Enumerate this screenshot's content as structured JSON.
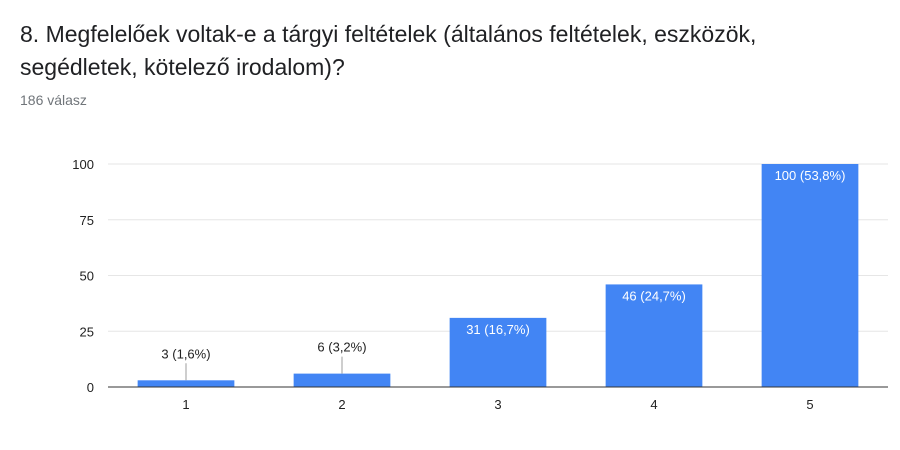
{
  "form": {
    "question": "8. Megfelelőek voltak-e a tárgyi feltételek (általános feltételek, eszközök, segédletek, kötelező irodalom)?",
    "response_count": "186 válasz"
  },
  "colors": {
    "bar": "#4285f4",
    "grid": "#e6e6e6",
    "axis": "#333333"
  },
  "chart_data": {
    "type": "bar",
    "categories": [
      "1",
      "2",
      "3",
      "4",
      "5"
    ],
    "values": [
      3,
      6,
      31,
      46,
      100
    ],
    "data_labels": [
      "3 (1,6%)",
      "6 (3,2%)",
      "31 (16,7%)",
      "46 (24,7%)",
      "100 (53,8%)"
    ],
    "title": "",
    "xlabel": "",
    "ylabel": "",
    "ylim": [
      0,
      100
    ],
    "yticks": [
      0,
      25,
      50,
      75,
      100
    ],
    "grid": true,
    "legend": "none"
  }
}
